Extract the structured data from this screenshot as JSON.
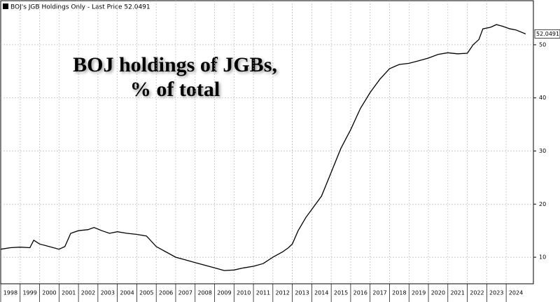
{
  "chart_data": {
    "type": "line",
    "legend": "BOJ's JGB Holdings Only - Last Price 52.0491",
    "annotation": [
      "BOJ holdings of JGBs,",
      "% of total"
    ],
    "series": [
      {
        "name": "BOJ's JGB Holdings Only",
        "color": "#000000",
        "x": [
          1998.0,
          1998.5,
          1999.0,
          1999.5,
          1999.7,
          2000.0,
          2000.5,
          2001.0,
          2001.3,
          2001.6,
          2002.0,
          2002.5,
          2002.8,
          2003.2,
          2003.6,
          2004.0,
          2004.5,
          2005.0,
          2005.5,
          2006.0,
          2006.5,
          2007.0,
          2007.5,
          2008.0,
          2008.5,
          2009.0,
          2009.5,
          2010.0,
          2010.5,
          2011.0,
          2011.5,
          2012.0,
          2012.5,
          2012.8,
          2013.0,
          2013.3,
          2013.7,
          2014.0,
          2014.5,
          2015.0,
          2015.5,
          2016.0,
          2016.5,
          2017.0,
          2017.5,
          2018.0,
          2018.5,
          2019.0,
          2019.5,
          2020.0,
          2020.5,
          2021.0,
          2021.5,
          2022.0,
          2022.3,
          2022.6,
          2022.8,
          2023.2,
          2023.5,
          2023.8,
          2024.2,
          2024.5,
          2025.0
        ],
        "values": [
          11.5,
          11.8,
          11.9,
          11.8,
          13.2,
          12.5,
          12.0,
          11.5,
          12.0,
          14.5,
          15.0,
          15.2,
          15.6,
          15.0,
          14.5,
          14.8,
          14.5,
          14.3,
          14.0,
          12.0,
          11.0,
          10.0,
          9.5,
          9.0,
          8.5,
          8.0,
          7.5,
          7.6,
          8.0,
          8.3,
          8.8,
          10.0,
          11.0,
          11.8,
          12.5,
          15.0,
          17.5,
          19.0,
          21.5,
          26.0,
          30.5,
          34.0,
          38.0,
          41.0,
          43.5,
          45.5,
          46.3,
          46.5,
          47.0,
          47.5,
          48.2,
          48.5,
          48.3,
          48.4,
          50.0,
          51.0,
          53.0,
          53.3,
          53.8,
          53.5,
          53.0,
          52.8,
          52.0491
        ]
      }
    ],
    "last_price": 52.0491,
    "xlim": [
      1998,
      2025.4
    ],
    "xticks": [
      1998,
      1999,
      2000,
      2001,
      2002,
      2003,
      2004,
      2005,
      2006,
      2007,
      2008,
      2009,
      2010,
      2011,
      2012,
      2013,
      2014,
      2015,
      2016,
      2017,
      2018,
      2019,
      2020,
      2021,
      2022,
      2023,
      2024
    ],
    "ylim": [
      5,
      58.3
    ],
    "yticks": [
      10,
      20,
      30,
      40,
      50
    ],
    "grid": true
  }
}
